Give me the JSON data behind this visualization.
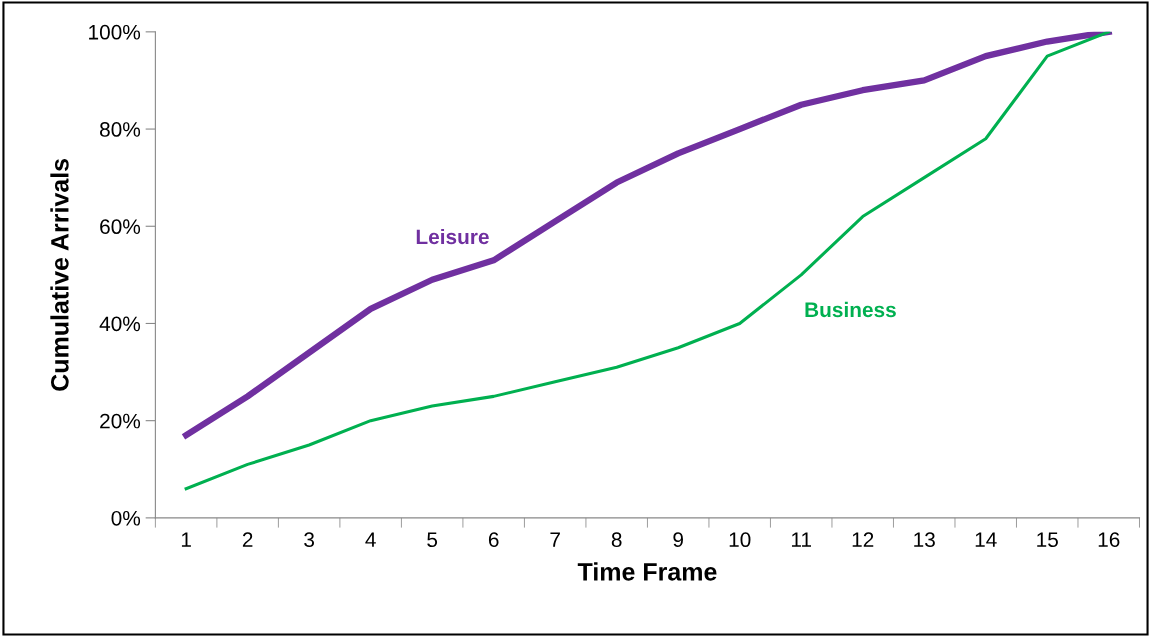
{
  "chart_data": {
    "type": "line",
    "xlabel": "Time Frame",
    "ylabel": "Cumulative Arrivals",
    "categories": [
      "1",
      "2",
      "3",
      "4",
      "5",
      "6",
      "7",
      "8",
      "9",
      "10",
      "11",
      "12",
      "13",
      "14",
      "15",
      "16"
    ],
    "series": [
      {
        "name": "Leisure",
        "color": "#7030a0",
        "values": [
          0.17,
          0.25,
          0.34,
          0.43,
          0.49,
          0.53,
          0.61,
          0.69,
          0.75,
          0.8,
          0.85,
          0.88,
          0.9,
          0.95,
          0.98,
          1.0
        ]
      },
      {
        "name": "Business",
        "color": "#00b050",
        "values": [
          0.06,
          0.11,
          0.15,
          0.2,
          0.23,
          0.25,
          0.28,
          0.31,
          0.35,
          0.4,
          0.5,
          0.62,
          0.7,
          0.78,
          0.95,
          1.0
        ]
      }
    ],
    "ylim": [
      0,
      1
    ],
    "yticks": [
      {
        "value": 0,
        "label": "0%"
      },
      {
        "value": 0.2,
        "label": "20%"
      },
      {
        "value": 0.4,
        "label": "40%"
      },
      {
        "value": 0.6,
        "label": "60%"
      },
      {
        "value": 0.8,
        "label": "80%"
      },
      {
        "value": 1,
        "label": "100%"
      }
    ],
    "grid": false,
    "legend": false,
    "marker": "none",
    "line_style": "solid"
  }
}
